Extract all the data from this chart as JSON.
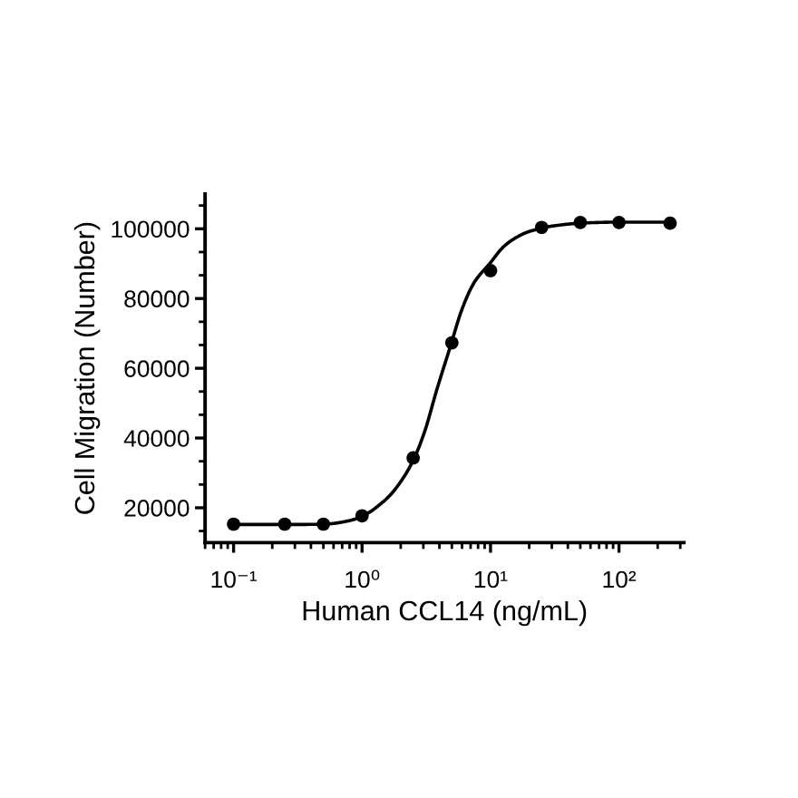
{
  "chart_data": {
    "type": "scatter",
    "xlabel": "Human CCL14 (ng/mL)",
    "ylabel": "Cell Migration (Number)",
    "log": "x",
    "xlim": [
      0.06,
      320
    ],
    "xticks": [
      {
        "value": 0.1,
        "label": "10⁻¹"
      },
      {
        "value": 1,
        "label": "10⁰"
      },
      {
        "value": 10,
        "label": "10¹"
      },
      {
        "value": 100,
        "label": "10²"
      }
    ],
    "ylim": [
      10000,
      110000
    ],
    "yticks": [
      20000,
      40000,
      60000,
      80000,
      100000
    ],
    "series": [
      {
        "type": "line",
        "color": "#000000",
        "x": [
          0.1,
          0.25,
          0.49,
          0.68,
          0.98,
          1.3,
          1.8,
          2.5,
          3.1,
          3.8,
          4.9,
          5.9,
          7.3,
          9.9,
          12.6,
          17.4,
          25,
          37,
          50,
          100,
          250
        ],
        "values": [
          15200,
          15200,
          15300,
          15800,
          17400,
          20200,
          25200,
          33600,
          42300,
          53600,
          66600,
          76200,
          84000,
          90100,
          94800,
          98300,
          100200,
          101200,
          101600,
          101900,
          101900
        ]
      },
      {
        "color": "#000000",
        "marker": "circle",
        "x": [
          0.1,
          0.25,
          0.5,
          1,
          2.5,
          5,
          10,
          25,
          50,
          100,
          250
        ],
        "values": [
          15300,
          15300,
          15300,
          17700,
          34300,
          67300,
          88000,
          100400,
          101800,
          101800,
          101600
        ]
      }
    ]
  }
}
